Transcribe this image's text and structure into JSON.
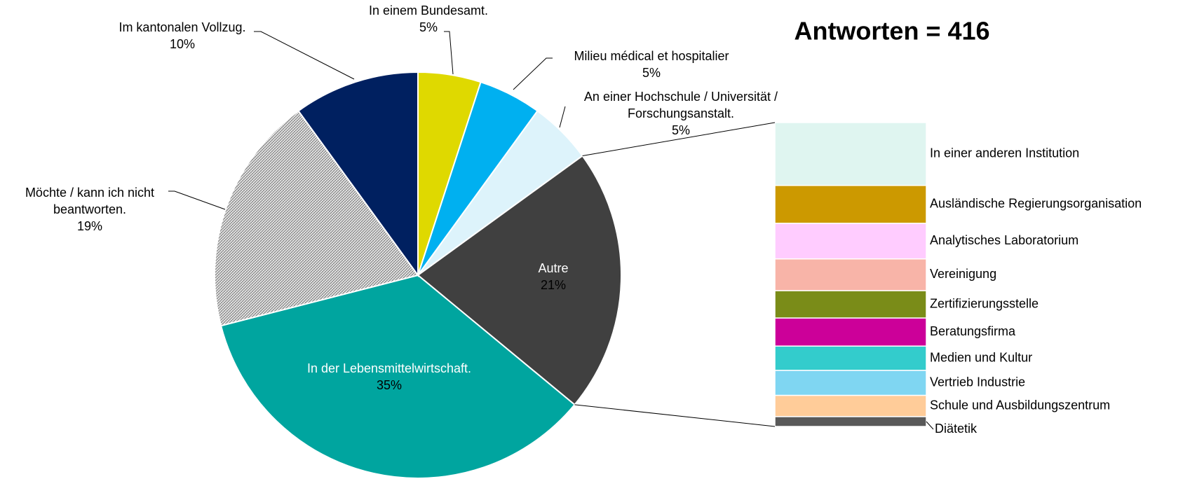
{
  "chart_data": {
    "type": "bar-of-pie",
    "title": "Antworten = 416",
    "categories": [
      "In einem Bundesamt.",
      "Milieu médical et hospitalier",
      "An einer Hochschule / Universität / Forschungsanstalt.",
      "Autre",
      "In der Lebensmittelwirtschaft.",
      "Möchte / kann ich nicht beantworten.",
      "Im kantonalen Vollzug."
    ],
    "values": [
      5,
      5,
      5,
      21,
      35,
      19,
      10
    ],
    "value_labels": [
      "5%",
      "5%",
      "5%",
      "21%",
      "35%",
      "19%",
      "10%"
    ],
    "colors": [
      "#dfd900",
      "#00b0f0",
      "#ddf3fb",
      "#404040",
      "#00a59f",
      "hatched",
      "#002060"
    ],
    "bar": {
      "of": "Autre",
      "categories": [
        "In einer anderen Institution",
        "Ausländische Regierungsorganisation",
        "Analytisches Laboratorium",
        "Vereinigung",
        "Zertifizierungsstelle",
        "Beratungsfirma",
        "Medien und Kultur",
        "Vertrieb Industrie",
        "Schule und Ausbildungszentrum",
        "Diätetik"
      ],
      "values": [
        4.35,
        2.62,
        2.46,
        2.2,
        1.89,
        1.94,
        1.68,
        1.73,
        1.47,
        0.68
      ],
      "colors": [
        "#dff5f0",
        "#cc9900",
        "#ffccff",
        "#f8b4a8",
        "#7a8c18",
        "#cc0099",
        "#33cccc",
        "#7fd6f2",
        "#ffcc99",
        "#595959"
      ]
    }
  }
}
